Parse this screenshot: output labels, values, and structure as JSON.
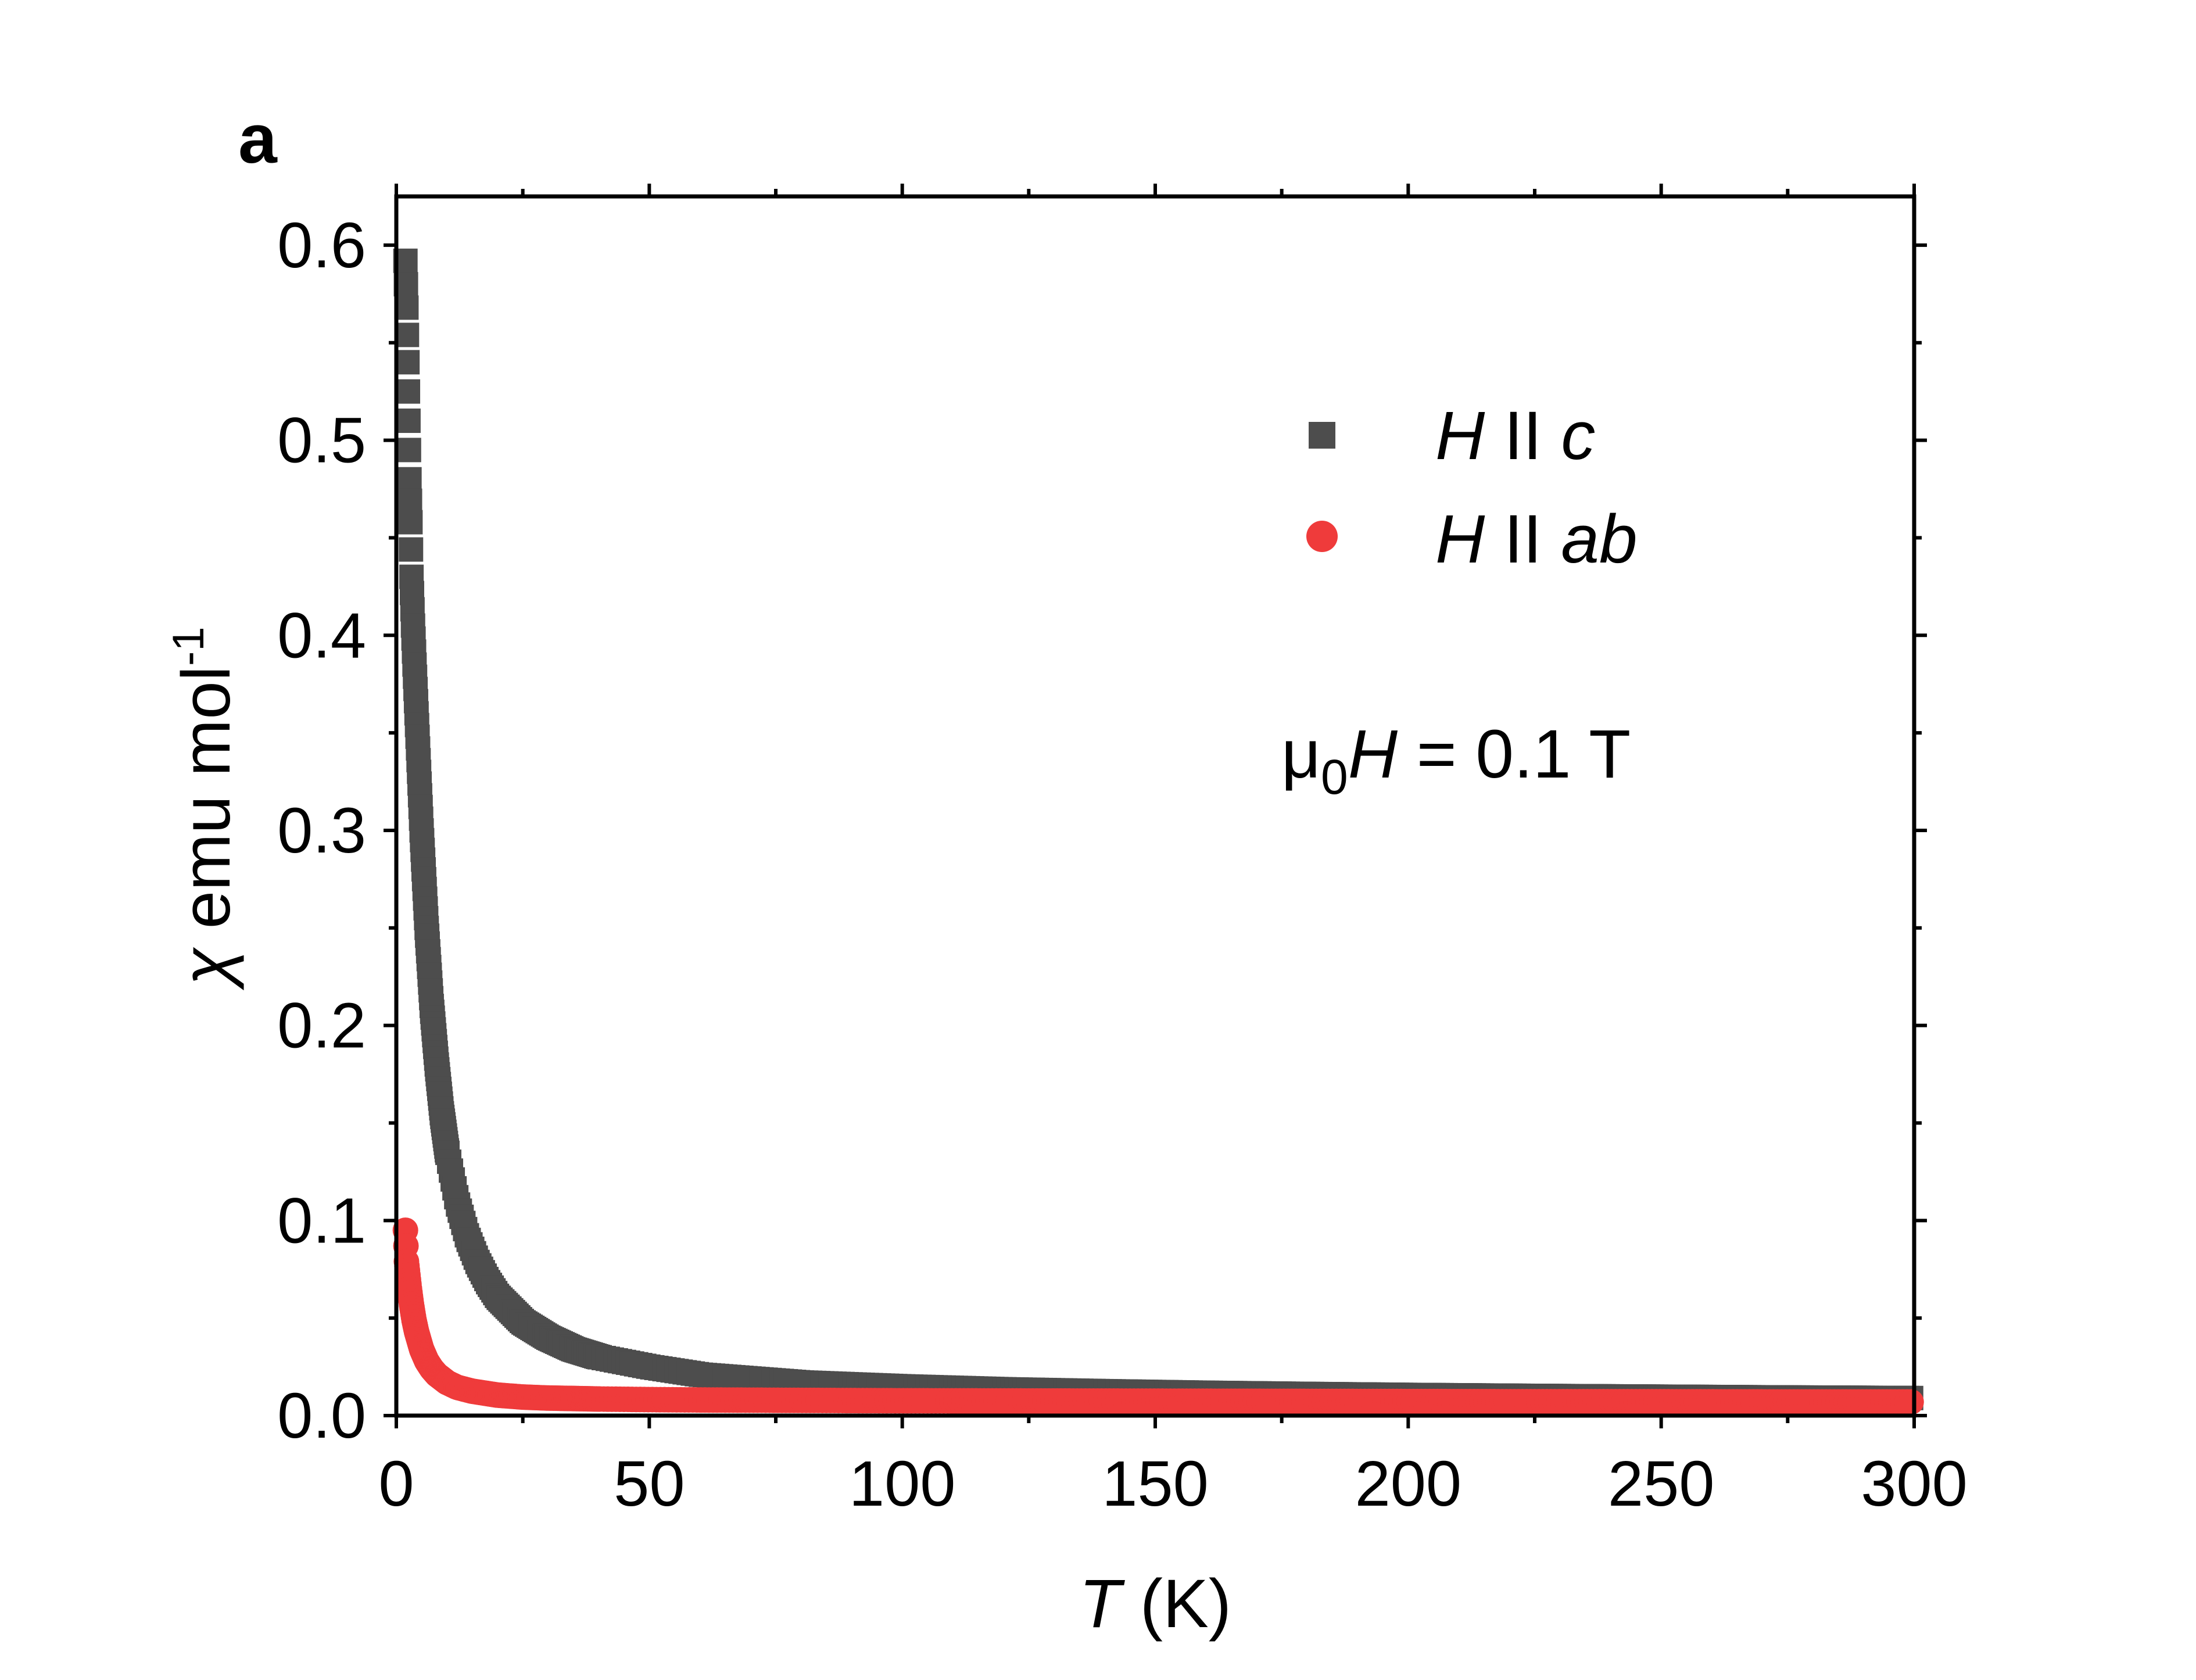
{
  "chart_data": {
    "type": "scatter",
    "panel_label": "a",
    "xlabel": {
      "symbol": "T",
      "unit": " (K)"
    },
    "ylabel": {
      "symbol": "χ",
      "unit": " emu mol",
      "exponent": "-1"
    },
    "xlim": [
      0,
      300
    ],
    "ylim": [
      0,
      0.625
    ],
    "xticks": [
      0,
      50,
      100,
      150,
      200,
      250,
      300
    ],
    "xtick_labels": [
      "0",
      "50",
      "100",
      "150",
      "200",
      "250",
      "300"
    ],
    "yticks": [
      0.0,
      0.1,
      0.2,
      0.3,
      0.4,
      0.5,
      0.6
    ],
    "ytick_labels": [
      "0.0",
      "0.1",
      "0.2",
      "0.3",
      "0.4",
      "0.5",
      "0.6"
    ],
    "legend_position": "top-right",
    "annotation": {
      "prefix": "μ",
      "subscript": "0",
      "variable": "H",
      "rest": " = 0.1 T"
    },
    "series": [
      {
        "name": "H II c",
        "legend_italic": "H",
        "legend_sep": " II ",
        "legend_dir": "c",
        "marker": "square",
        "color": "#4d4d4d",
        "x": [
          1.8,
          2.0,
          2.2,
          2.4,
          2.6,
          2.8,
          3.0,
          3.3,
          3.6,
          4.0,
          4.5,
          5.0,
          5.5,
          6.0,
          7.0,
          8.0,
          9.0,
          10.0,
          12.0,
          14.0,
          16.0,
          18.0,
          20.0,
          25.0,
          30.0,
          35.0,
          40.0,
          50.0,
          60.0,
          70.0,
          80.0,
          90.0,
          100.0,
          120.0,
          140.0,
          160.0,
          180.0,
          200.0,
          225.0,
          250.0,
          275.0,
          300.0
        ],
        "y": [
          0.592,
          0.568,
          0.54,
          0.51,
          0.48,
          0.458,
          0.43,
          0.405,
          0.385,
          0.36,
          0.33,
          0.3,
          0.275,
          0.25,
          0.21,
          0.18,
          0.155,
          0.136,
          0.11,
          0.092,
          0.079,
          0.069,
          0.061,
          0.048,
          0.04,
          0.034,
          0.03,
          0.025,
          0.021,
          0.019,
          0.017,
          0.016,
          0.015,
          0.0135,
          0.0125,
          0.0117,
          0.0111,
          0.0106,
          0.0101,
          0.0097,
          0.0093,
          0.009
        ]
      },
      {
        "name": "H II ab",
        "legend_italic": "H",
        "legend_sep": " II ",
        "legend_dir": "ab",
        "marker": "circle",
        "color": "#ef3b3b",
        "x": [
          1.8,
          2.0,
          2.3,
          2.6,
          3.0,
          3.5,
          4.0,
          5.0,
          6.0,
          7.0,
          8.0,
          10.0,
          12.0,
          15.0,
          20.0,
          25.0,
          30.0,
          40.0,
          50.0,
          60.0,
          80.0,
          100.0,
          125.0,
          150.0,
          175.0,
          200.0,
          225.0,
          250.0,
          275.0,
          300.0
        ],
        "y": [
          0.095,
          0.079,
          0.072,
          0.065,
          0.057,
          0.049,
          0.043,
          0.034,
          0.028,
          0.024,
          0.021,
          0.017,
          0.0145,
          0.0125,
          0.0105,
          0.0095,
          0.009,
          0.0085,
          0.0082,
          0.008,
          0.0078,
          0.0076,
          0.0075,
          0.0074,
          0.0073,
          0.0072,
          0.0071,
          0.0071,
          0.007,
          0.007
        ]
      }
    ]
  }
}
